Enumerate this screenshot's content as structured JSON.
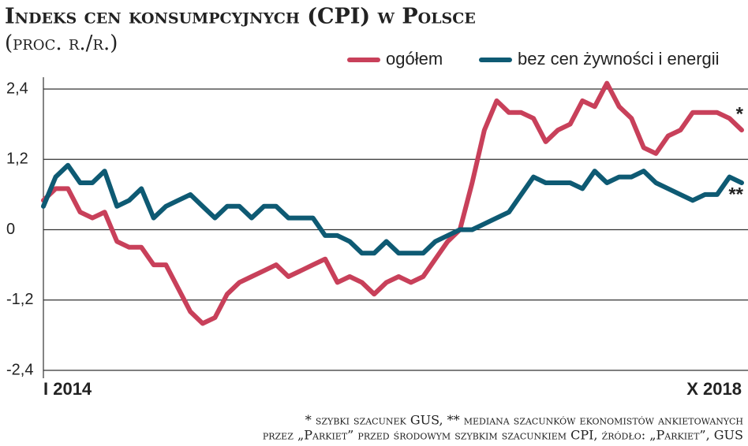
{
  "chart_data": {
    "type": "line",
    "title": "Indeks cen konsumpcyjnych (CPI) w Polsce",
    "subtitle": "(proc. r./r.)",
    "categories": [
      "I 2014",
      null,
      null,
      null,
      null,
      null,
      null,
      null,
      null,
      null,
      null,
      null,
      null,
      null,
      null,
      null,
      null,
      null,
      null,
      null,
      null,
      null,
      null,
      null,
      null,
      null,
      null,
      null,
      null,
      null,
      null,
      null,
      null,
      null,
      null,
      null,
      null,
      null,
      null,
      null,
      null,
      null,
      null,
      null,
      null,
      null,
      null,
      null,
      null,
      null,
      null,
      null,
      null,
      null,
      null,
      null,
      null,
      "X 2018"
    ],
    "series": [
      {
        "name": "ogółem",
        "color": "#c8405a",
        "values": [
          0.5,
          0.7,
          0.7,
          0.3,
          0.2,
          0.3,
          -0.2,
          -0.3,
          -0.3,
          -0.6,
          -0.6,
          -1.0,
          -1.4,
          -1.6,
          -1.5,
          -1.1,
          -0.9,
          -0.8,
          -0.7,
          -0.6,
          -0.8,
          -0.7,
          -0.6,
          -0.5,
          -0.9,
          -0.8,
          -0.9,
          -1.1,
          -0.9,
          -0.8,
          -0.9,
          -0.8,
          -0.5,
          -0.2,
          0.0,
          0.8,
          1.7,
          2.2,
          2.0,
          2.0,
          1.9,
          1.5,
          1.7,
          1.8,
          2.2,
          2.1,
          2.5,
          2.1,
          1.9,
          1.4,
          1.3,
          1.6,
          1.7,
          2.0,
          2.0,
          2.0,
          1.9,
          1.7
        ]
      },
      {
        "name": "bez cen żywności i energii",
        "color": "#0e5a73",
        "values": [
          0.4,
          0.9,
          1.1,
          0.8,
          0.8,
          1.0,
          0.4,
          0.5,
          0.7,
          0.2,
          0.4,
          0.5,
          0.6,
          0.4,
          0.2,
          0.4,
          0.4,
          0.2,
          0.4,
          0.4,
          0.2,
          0.2,
          0.2,
          -0.1,
          -0.1,
          -0.2,
          -0.4,
          -0.4,
          -0.2,
          -0.4,
          -0.4,
          -0.4,
          -0.2,
          -0.1,
          0.0,
          0.0,
          0.1,
          0.2,
          0.3,
          0.6,
          0.9,
          0.8,
          0.8,
          0.8,
          0.7,
          1.0,
          0.8,
          0.9,
          0.9,
          1.0,
          0.8,
          0.7,
          0.6,
          0.5,
          0.6,
          0.6,
          0.9,
          0.8
        ]
      }
    ],
    "annotations": [
      "*",
      "**"
    ],
    "ylim": [
      -2.4,
      2.4
    ],
    "yticks": [
      {
        "value": -2.4,
        "label": "-2,4"
      },
      {
        "value": -1.2,
        "label": "-1,2"
      },
      0,
      {
        "value": 1.2,
        "label": "1,2"
      },
      {
        "value": 2.4,
        "label": "2,4"
      }
    ],
    "grid": true,
    "legend": "top-right",
    "footnote": [
      "* szybki szacunek GUS, ** mediana szacunków ekonomistów ankietowanych",
      "przez „Parkiet” przed środowym szybkim szacunkiem CPI, źródło: „Parkiet”, GUS"
    ]
  }
}
